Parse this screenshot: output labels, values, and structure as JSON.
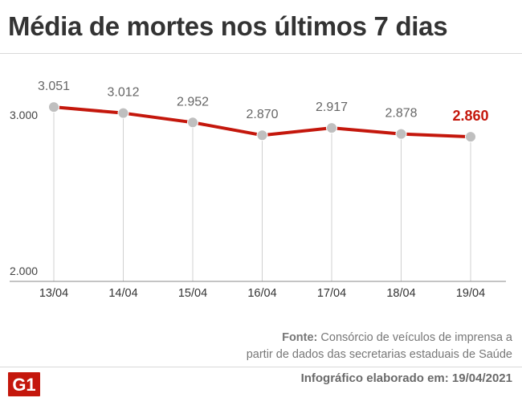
{
  "title": "Média de mortes nos últimos 7 dias",
  "source_label": "Fonte:",
  "source_line1": "Consórcio de veículos de imprensa a",
  "source_line2": "partir de dados das secretarias estaduais de Saúde",
  "logo_text": "G1",
  "date_note": "Infográfico elaborado em: 19/04/2021",
  "colors": {
    "line": "#c4170c",
    "highlight": "#c4170c",
    "marker": "#bfbfbf",
    "text": "#666666"
  },
  "chart_data": {
    "type": "line",
    "categories": [
      "13/04",
      "14/04",
      "15/04",
      "16/04",
      "17/04",
      "18/04",
      "19/04"
    ],
    "values": [
      3051,
      3012,
      2952,
      2870,
      2917,
      2878,
      2860
    ],
    "value_labels": [
      "3.051",
      "3.012",
      "2.952",
      "2.870",
      "2.917",
      "2.878",
      "2.860"
    ],
    "yticks": [
      2000,
      3000
    ],
    "ytick_labels": [
      "2.000",
      "3.000"
    ],
    "ylim": [
      2000,
      3000
    ],
    "highlight_last": true,
    "title": "",
    "xlabel": "",
    "ylabel": ""
  }
}
